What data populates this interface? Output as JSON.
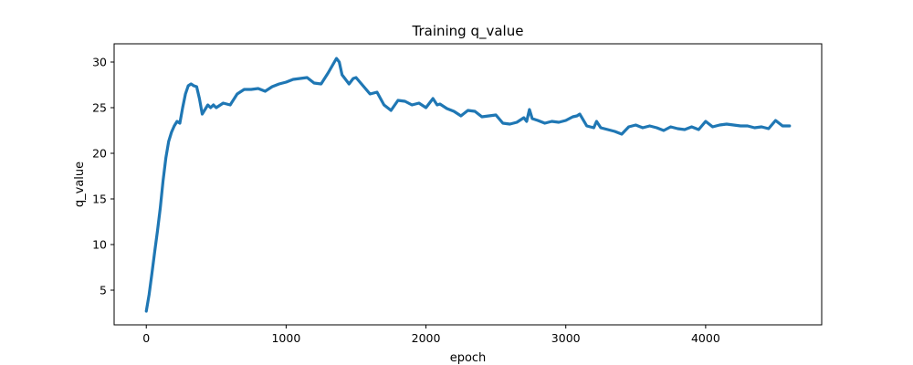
{
  "chart_data": {
    "type": "line",
    "title": "Training q_value",
    "xlabel": "epoch",
    "ylabel": "q_value",
    "xlim": [
      -230,
      4830
    ],
    "ylim": [
      1.2,
      32.0
    ],
    "xticks": [
      0,
      1000,
      2000,
      3000,
      4000
    ],
    "yticks": [
      5,
      10,
      15,
      20,
      25,
      30
    ],
    "grid": false,
    "legend": "none",
    "series": [
      {
        "color": "#1f77b4",
        "x": [
          0,
          20,
          40,
          60,
          80,
          100,
          120,
          140,
          160,
          180,
          200,
          220,
          240,
          260,
          280,
          300,
          320,
          340,
          360,
          380,
          400,
          420,
          440,
          460,
          480,
          500,
          550,
          600,
          650,
          700,
          750,
          800,
          850,
          900,
          950,
          1000,
          1050,
          1100,
          1150,
          1200,
          1250,
          1300,
          1330,
          1360,
          1380,
          1400,
          1420,
          1450,
          1480,
          1500,
          1550,
          1600,
          1650,
          1700,
          1750,
          1800,
          1850,
          1900,
          1950,
          2000,
          2050,
          2080,
          2100,
          2150,
          2200,
          2250,
          2300,
          2350,
          2400,
          2450,
          2500,
          2550,
          2600,
          2650,
          2700,
          2720,
          2740,
          2760,
          2800,
          2850,
          2900,
          2950,
          3000,
          3050,
          3080,
          3100,
          3150,
          3200,
          3220,
          3250,
          3300,
          3350,
          3400,
          3450,
          3500,
          3550,
          3600,
          3650,
          3700,
          3750,
          3800,
          3850,
          3900,
          3950,
          4000,
          4050,
          4100,
          4150,
          4200,
          4250,
          4300,
          4350,
          4400,
          4450,
          4500,
          4550,
          4600
        ],
        "y": [
          2.7,
          4.5,
          6.8,
          9.2,
          11.5,
          14.0,
          17.0,
          19.5,
          21.3,
          22.3,
          23.0,
          23.5,
          23.3,
          25.0,
          26.5,
          27.4,
          27.6,
          27.4,
          27.3,
          26.0,
          24.3,
          24.8,
          25.3,
          25.0,
          25.3,
          25.0,
          25.5,
          25.3,
          26.5,
          27.0,
          27.0,
          27.1,
          26.8,
          27.3,
          27.6,
          27.8,
          28.1,
          28.2,
          28.3,
          27.7,
          27.6,
          28.8,
          29.6,
          30.4,
          30.0,
          28.6,
          28.2,
          27.6,
          28.2,
          28.3,
          27.4,
          26.5,
          26.7,
          25.3,
          24.7,
          25.8,
          25.7,
          25.3,
          25.5,
          25.0,
          26.0,
          25.3,
          25.4,
          24.9,
          24.6,
          24.1,
          24.7,
          24.6,
          24.0,
          24.1,
          24.2,
          23.3,
          23.2,
          23.4,
          23.9,
          23.5,
          24.8,
          23.8,
          23.6,
          23.3,
          23.5,
          23.4,
          23.6,
          24.0,
          24.1,
          24.3,
          23.0,
          22.8,
          23.5,
          22.8,
          22.6,
          22.4,
          22.1,
          22.9,
          23.1,
          22.8,
          23.0,
          22.8,
          22.5,
          22.9,
          22.7,
          22.6,
          22.9,
          22.6,
          23.5,
          22.9,
          23.1,
          23.2,
          23.1,
          23.0,
          23.0,
          22.8,
          22.9,
          22.7,
          23.6,
          23.0,
          23.0
        ]
      }
    ]
  }
}
